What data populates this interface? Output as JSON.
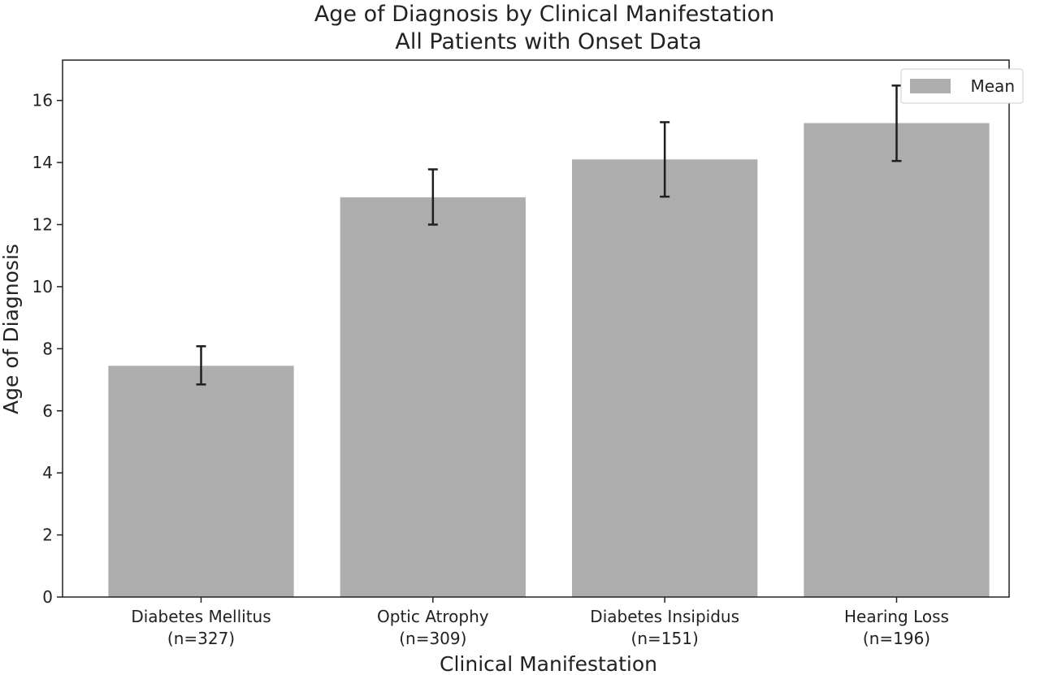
{
  "chart_data": {
    "type": "bar",
    "title": "Age of Diagnosis by Clinical Manifestation",
    "subtitle": "All Patients with Onset Data",
    "xlabel": "Clinical Manifestation",
    "ylabel": "Age of Diagnosis",
    "categories": [
      "Diabetes Mellitus",
      "Optic Atrophy",
      "Diabetes Insipidus",
      "Hearing Loss"
    ],
    "category_counts": [
      "(n=327)",
      "(n=309)",
      "(n=151)",
      "(n=196)"
    ],
    "series": [
      {
        "name": "Mean",
        "values": [
          7.45,
          12.88,
          14.1,
          15.27
        ],
        "error_low": [
          6.85,
          12.0,
          12.9,
          14.05
        ],
        "error_high": [
          8.08,
          13.78,
          15.3,
          16.48
        ]
      }
    ],
    "ylim": [
      0,
      17.3
    ],
    "yticks": [
      0,
      2,
      4,
      6,
      8,
      10,
      12,
      14,
      16
    ],
    "grid": false,
    "legend_position": "top-right",
    "colors": {
      "bar": "#adadad",
      "error": "#1f1f1f",
      "axis": "#222222"
    }
  }
}
